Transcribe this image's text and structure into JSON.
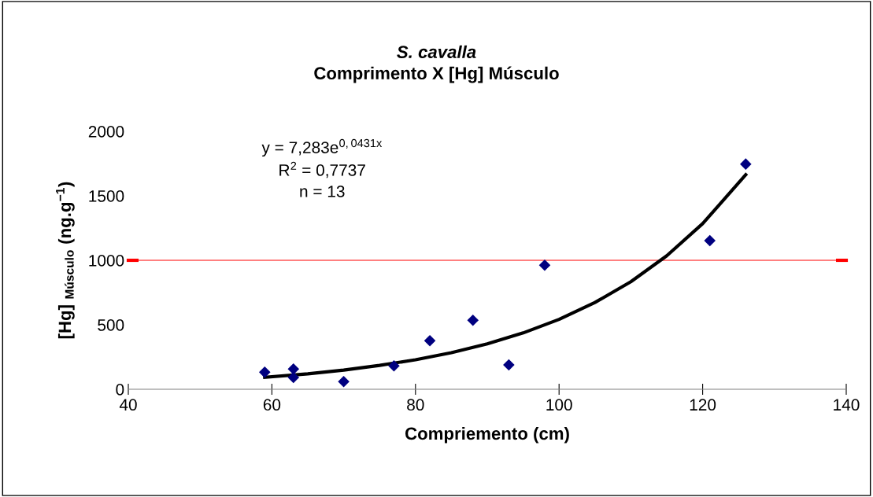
{
  "chart_data": {
    "type": "scatter",
    "title": "S. cavalla",
    "subtitle": "Comprimento X [Hg] Músculo",
    "xlabel": "Compriemento (cm)",
    "ylabel": "[Hg] $_{Músculo}$ (ng.g$^{−1}$)",
    "series": [
      {
        "color": "#000080",
        "marker": "diamond",
        "x": [
          59,
          63,
          63,
          70,
          77,
          82,
          88,
          93,
          98,
          121,
          126
        ],
        "values": [
          132,
          157,
          91,
          59,
          181,
          376,
          535,
          189,
          962,
          1152,
          1746
        ]
      },
      {
        "type": "line",
        "color": "#000000",
        "marker": "none",
        "line_style": "solid",
        "x": [
          59,
          65,
          70,
          75,
          80,
          85,
          90,
          95,
          100,
          105,
          110,
          115,
          120,
          126
        ],
        "values": [
          93,
          120,
          149,
          185,
          229,
          284,
          352,
          437,
          542,
          673,
          834,
          1035,
          1284,
          1663
        ]
      }
    ],
    "annotations": [
      {
        "text": "y = 7,283e$^{0,0431x}$\nR$^{2}$ = 0,7737\nn = 13"
      }
    ],
    "ref_lines": [
      {
        "axis": "y",
        "value": 1000,
        "color": "#ff8080"
      }
    ],
    "xlim": [
      40,
      140
    ],
    "xticks": [
      40,
      60,
      80,
      100,
      120,
      140
    ],
    "ylim": [
      0,
      2000
    ],
    "yticks": [
      0,
      500,
      1000,
      1500,
      2000
    ],
    "grid": false,
    "legend": false
  }
}
